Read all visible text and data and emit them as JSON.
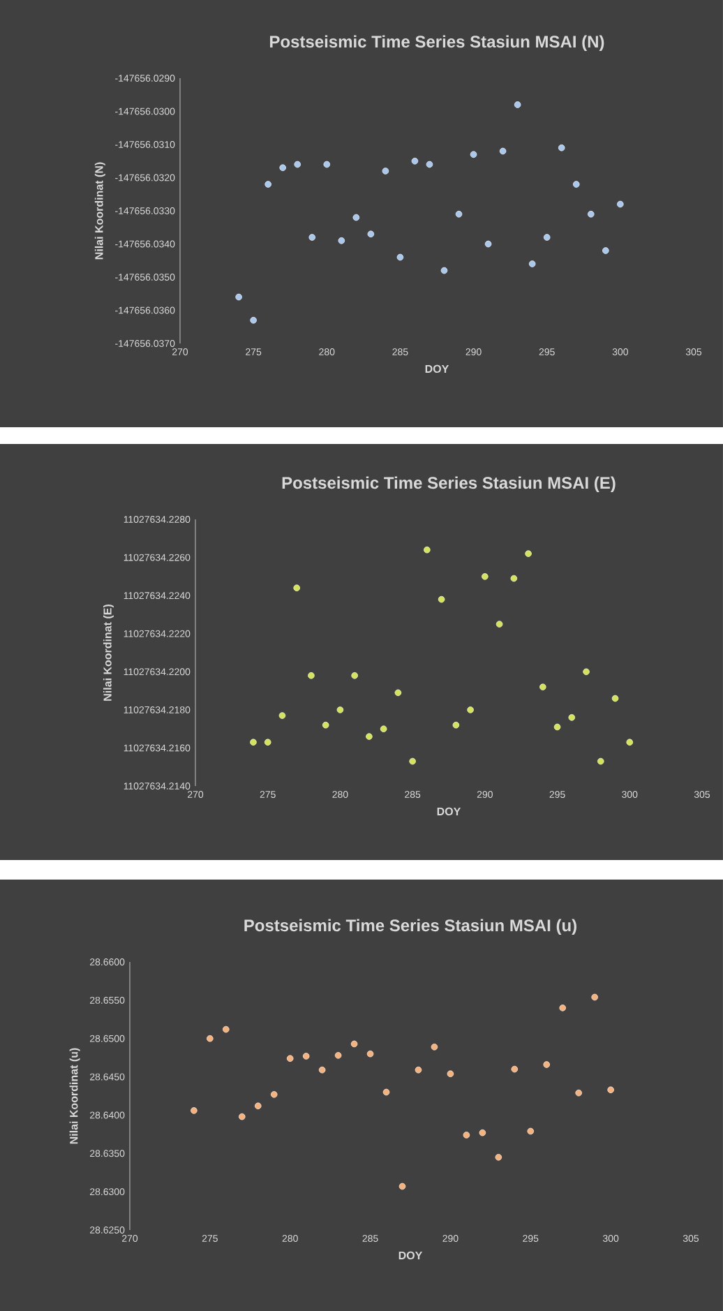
{
  "chart_data": [
    {
      "type": "scatter",
      "title": "Postseismic Time Series Stasiun MSAI (N)",
      "xlabel": "DOY",
      "ylabel": "Nilai Koordinat (N)",
      "color": "#a9c8ec",
      "marker": "circle",
      "x": [
        274,
        275,
        276,
        277,
        278,
        279,
        280,
        281,
        282,
        283,
        284,
        285,
        286,
        287,
        288,
        289,
        290,
        291,
        292,
        293,
        294,
        295,
        296,
        297,
        298,
        299,
        300
      ],
      "values": [
        -147656.0356,
        -147656.0363,
        -147656.0322,
        -147656.0317,
        -147656.0316,
        -147656.0338,
        -147656.0316,
        -147656.0339,
        -147656.0332,
        -147656.0337,
        -147656.0318,
        -147656.0344,
        -147656.0315,
        -147656.0316,
        -147656.0348,
        -147656.0331,
        -147656.0313,
        -147656.034,
        -147656.0312,
        -147656.0298,
        -147656.0346,
        -147656.0338,
        -147656.0311,
        -147656.0322,
        -147656.0331,
        -147656.0342,
        -147656.0328
      ],
      "xlim": [
        270,
        305
      ],
      "xticks": [
        270,
        275,
        280,
        285,
        290,
        295,
        300,
        305
      ],
      "ylim": [
        -147656.037,
        -147656.029
      ],
      "yticks": [
        {
          "value": -147656.037,
          "label": "-147656.0370"
        },
        {
          "value": -147656.036,
          "label": "-147656.0360"
        },
        {
          "value": -147656.035,
          "label": "-147656.0350"
        },
        {
          "value": -147656.034,
          "label": "-147656.0340"
        },
        {
          "value": -147656.033,
          "label": "-147656.0330"
        },
        {
          "value": -147656.032,
          "label": "-147656.0320"
        },
        {
          "value": -147656.031,
          "label": "-147656.0310"
        },
        {
          "value": -147656.03,
          "label": "-147656.0300"
        },
        {
          "value": -147656.029,
          "label": "-147656.0290"
        }
      ]
    },
    {
      "type": "scatter",
      "title": "Postseismic Time Series Stasiun MSAI (E)",
      "xlabel": "DOY",
      "ylabel": "Nilai Koordinat (E)",
      "color": "#d4e45a",
      "marker": "circle",
      "x": [
        274,
        275,
        276,
        277,
        278,
        279,
        280,
        281,
        282,
        283,
        284,
        285,
        286,
        287,
        288,
        289,
        290,
        291,
        292,
        293,
        294,
        295,
        296,
        297,
        298,
        299,
        300
      ],
      "values": [
        11027634.2163,
        11027634.2163,
        11027634.2177,
        11027634.2244,
        11027634.2198,
        11027634.2172,
        11027634.218,
        11027634.2198,
        11027634.2166,
        11027634.217,
        11027634.2189,
        11027634.2153,
        11027634.2264,
        11027634.2238,
        11027634.2172,
        11027634.218,
        11027634.225,
        11027634.2225,
        11027634.2249,
        11027634.2262,
        11027634.2192,
        11027634.2171,
        11027634.2176,
        11027634.22,
        11027634.2153,
        11027634.2186,
        11027634.2163
      ],
      "xlim": [
        270,
        305
      ],
      "xticks": [
        270,
        275,
        280,
        285,
        290,
        295,
        300,
        305
      ],
      "ylim": [
        11027634.214,
        11027634.228
      ],
      "yticks": [
        {
          "value": 11027634.214,
          "label": "11027634.2140"
        },
        {
          "value": 11027634.216,
          "label": "11027634.2160"
        },
        {
          "value": 11027634.218,
          "label": "11027634.2180"
        },
        {
          "value": 11027634.22,
          "label": "11027634.2200"
        },
        {
          "value": 11027634.222,
          "label": "11027634.2220"
        },
        {
          "value": 11027634.224,
          "label": "11027634.2240"
        },
        {
          "value": 11027634.226,
          "label": "11027634.2260"
        },
        {
          "value": 11027634.228,
          "label": "11027634.2280"
        }
      ]
    },
    {
      "type": "scatter",
      "title": "Postseismic Time Series Stasiun MSAI (u)",
      "xlabel": "DOY",
      "ylabel": "Nilai Koordinat (u)",
      "color": "#f5b27c",
      "marker": "circle",
      "x": [
        274,
        275,
        276,
        277,
        278,
        279,
        280,
        281,
        282,
        283,
        284,
        285,
        286,
        287,
        288,
        289,
        290,
        291,
        292,
        293,
        294,
        295,
        296,
        297,
        298,
        299,
        300
      ],
      "values": [
        28.6406,
        28.65,
        28.6512,
        28.6398,
        28.6412,
        28.6427,
        28.6474,
        28.6477,
        28.6459,
        28.6478,
        28.6493,
        28.648,
        28.643,
        28.6307,
        28.6459,
        28.6489,
        28.6454,
        28.6374,
        28.6377,
        28.6345,
        28.646,
        28.6379,
        28.6466,
        28.654,
        28.6429,
        28.6554,
        28.6433
      ],
      "xlim": [
        270,
        305
      ],
      "xticks": [
        270,
        275,
        280,
        285,
        290,
        295,
        300,
        305
      ],
      "ylim": [
        28.625,
        28.66
      ],
      "yticks": [
        {
          "value": 28.625,
          "label": "28.6250"
        },
        {
          "value": 28.63,
          "label": "28.6300"
        },
        {
          "value": 28.635,
          "label": "28.6350"
        },
        {
          "value": 28.64,
          "label": "28.6400"
        },
        {
          "value": 28.645,
          "label": "28.6450"
        },
        {
          "value": 28.65,
          "label": "28.6500"
        },
        {
          "value": 28.655,
          "label": "28.6550"
        },
        {
          "value": 28.66,
          "label": "28.6600"
        }
      ]
    }
  ]
}
